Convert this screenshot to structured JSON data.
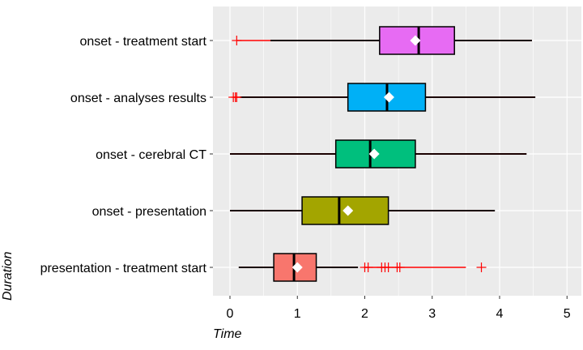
{
  "chart_data": {
    "type": "boxplot",
    "orientation": "horizontal",
    "xlabel": "Time",
    "ylabel": "Duration",
    "xlim": [
      -0.25,
      5.2
    ],
    "xticks": [
      0,
      1,
      2,
      3,
      4,
      5
    ],
    "grid": true,
    "legend": "none",
    "panel_color": "#ebebeb",
    "categories": [
      {
        "label": "onset - treatment start",
        "color": "#e76bf3",
        "whisker_low": 0.6,
        "q1": 2.22,
        "median": 2.8,
        "mean": 2.75,
        "q3": 3.33,
        "whisker_high": 4.48,
        "outliers": [
          0.1
        ]
      },
      {
        "label": "onset - analyses results",
        "color": "#00b0f6",
        "whisker_low": 0.15,
        "q1": 1.75,
        "median": 2.33,
        "mean": 2.36,
        "q3": 2.9,
        "whisker_high": 4.53,
        "outliers": [
          0.05,
          0.08,
          0.1
        ]
      },
      {
        "label": "onset - cerebral CT",
        "color": "#00bf7d",
        "whisker_low": 0.0,
        "q1": 1.57,
        "median": 2.08,
        "mean": 2.14,
        "q3": 2.75,
        "whisker_high": 4.4,
        "outliers": []
      },
      {
        "label": "onset - presentation",
        "color": "#a3a500",
        "whisker_low": 0.0,
        "q1": 1.07,
        "median": 1.62,
        "mean": 1.75,
        "q3": 2.35,
        "whisker_high": 3.93,
        "outliers": []
      },
      {
        "label": "presentation - treatment start",
        "color": "#f8766d",
        "whisker_low": 0.13,
        "q1": 0.65,
        "median": 0.95,
        "mean": 1.0,
        "q3": 1.28,
        "whisker_high": 1.9,
        "outliers": [
          2.0,
          2.05,
          2.25,
          2.3,
          2.35,
          2.48,
          2.52,
          3.73
        ],
        "outlier_span": [
          2.0,
          3.5
        ]
      }
    ]
  }
}
